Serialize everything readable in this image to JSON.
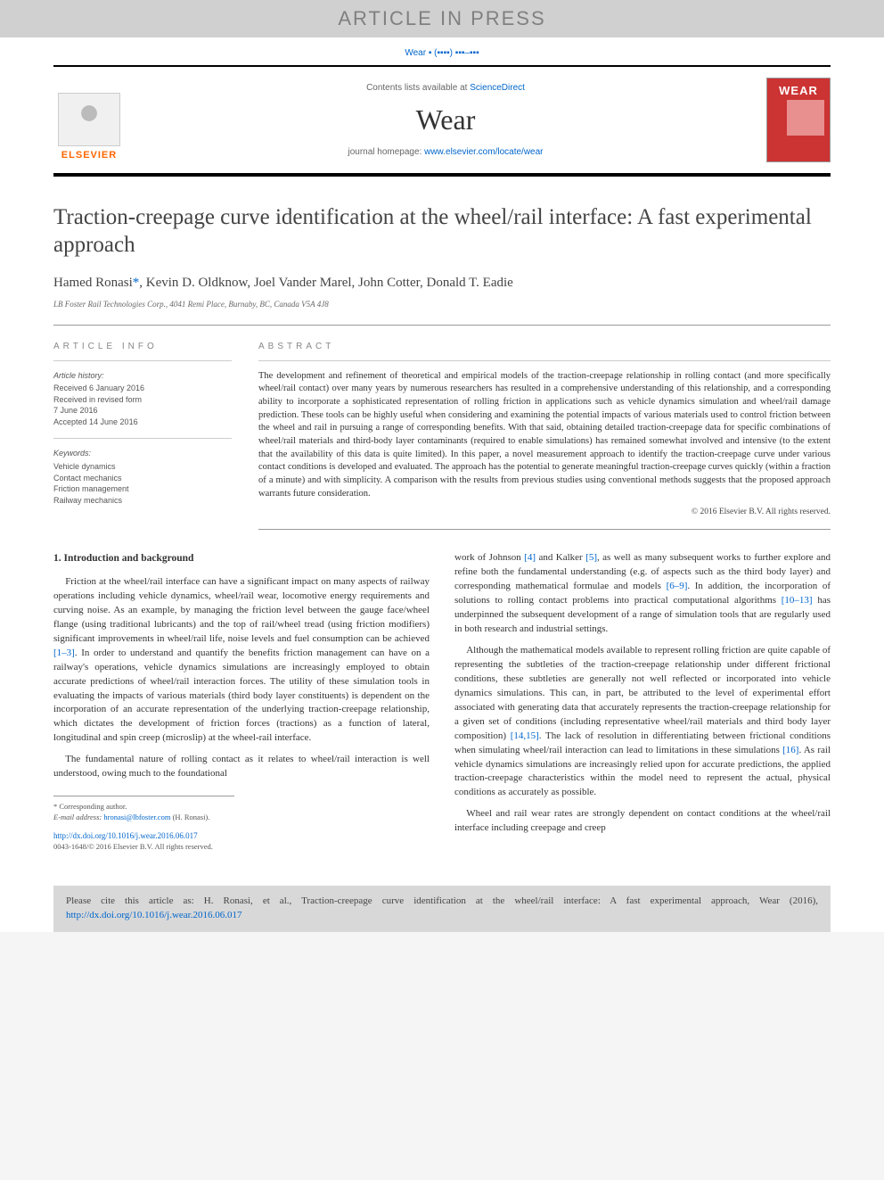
{
  "banner": {
    "text": "ARTICLE IN PRESS"
  },
  "citation_top": "Wear ▪ (▪▪▪▪) ▪▪▪–▪▪▪",
  "header": {
    "contents_prefix": "Contents lists available at ",
    "contents_link": "ScienceDirect",
    "journal": "Wear",
    "homepage_prefix": "journal homepage: ",
    "homepage_link": "www.elsevier.com/locate/wear",
    "publisher": "ELSEVIER",
    "cover_title": "WEAR"
  },
  "article": {
    "title": "Traction-creepage curve identification at the wheel/rail interface: A fast experimental approach",
    "authors_prefix": "Hamed Ronasi",
    "corr_marker": "*",
    "authors_rest": ", Kevin D. Oldknow, Joel Vander Marel, John Cotter, Donald T. Eadie",
    "affiliation": "LB Foster Rail Technologies Corp., 4041 Remi Place, Burnaby, BC, Canada V5A 4J8"
  },
  "info": {
    "heading": "ARTICLE INFO",
    "history_label": "Article history:",
    "received": "Received 6 January 2016",
    "revised1": "Received in revised form",
    "revised2": "7 June 2016",
    "accepted": "Accepted 14 June 2016",
    "keywords_label": "Keywords:",
    "kw1": "Vehicle dynamics",
    "kw2": "Contact mechanics",
    "kw3": "Friction management",
    "kw4": "Railway mechanics"
  },
  "abstract": {
    "heading": "ABSTRACT",
    "text": "The development and refinement of theoretical and empirical models of the traction-creepage relationship in rolling contact (and more specifically wheel/rail contact) over many years by numerous researchers has resulted in a comprehensive understanding of this relationship, and a corresponding ability to incorporate a sophisticated representation of rolling friction in applications such as vehicle dynamics simulation and wheel/rail damage prediction. These tools can be highly useful when considering and examining the potential impacts of various materials used to control friction between the wheel and rail in pursuing a range of corresponding benefits. With that said, obtaining detailed traction-creepage data for specific combinations of wheel/rail materials and third-body layer contaminants (required to enable simulations) has remained somewhat involved and intensive (to the extent that the availability of this data is quite limited). In this paper, a novel measurement approach to identify the traction-creepage curve under various contact conditions is developed and evaluated. The approach has the potential to generate meaningful traction-creepage curves quickly (within a fraction of a minute) and with simplicity. A comparison with the results from previous studies using conventional methods suggests that the proposed approach warrants future consideration.",
    "copyright": "© 2016 Elsevier B.V. All rights reserved."
  },
  "body": {
    "sec_heading": "1. Introduction and background",
    "col1_p1a": "Friction at the wheel/rail interface can have a significant impact on many aspects of railway operations including vehicle dynamics, wheel/rail wear, locomotive energy requirements and curving noise. As an example, by managing the friction level between the gauge face/wheel flange (using traditional lubricants) and the top of rail/wheel tread (using friction modifiers) significant improvements in wheel/rail life, noise levels and fuel consumption can be achieved ",
    "col1_ref1": "[1–3]",
    "col1_p1b": ". In order to understand and quantify the benefits friction management can have on a railway's operations, vehicle dynamics simulations are increasingly employed to obtain accurate predictions of wheel/rail interaction forces. The utility of these simulation tools in evaluating the impacts of various materials (third body layer constituents) is dependent on the incorporation of an accurate representation of the underlying traction-creepage relationship, which dictates the development of friction forces (tractions) as a function of lateral, longitudinal and spin creep (microslip) at the wheel-rail interface.",
    "col1_p2": "The fundamental nature of rolling contact as it relates to wheel/rail interaction is well understood, owing much to the foundational",
    "col2_p1a": "work of Johnson ",
    "col2_ref4": "[4]",
    "col2_p1b": " and Kalker ",
    "col2_ref5": "[5]",
    "col2_p1c": ", as well as many subsequent works to further explore and refine both the fundamental understanding (e.g. of aspects such as the third body layer) and corresponding mathematical formulae and models ",
    "col2_ref69": "[6–9]",
    "col2_p1d": ". In addition, the incorporation of solutions to rolling contact problems into practical computational algorithms ",
    "col2_ref1013": "[10–13]",
    "col2_p1e": " has underpinned the subsequent development of a range of simulation tools that are regularly used in both research and industrial settings.",
    "col2_p2a": "Although the mathematical models available to represent rolling friction are quite capable of representing the subtleties of the traction-creepage relationship under different frictional conditions, these subtleties are generally not well reflected or incorporated into vehicle dynamics simulations. This can, in part, be attributed to the level of experimental effort associated with generating data that accurately represents the traction-creepage relationship for a given set of conditions (including representative wheel/rail materials and third body layer composition) ",
    "col2_ref1415": "[14,15]",
    "col2_p2b": ". The lack of resolution in differentiating between frictional conditions when simulating wheel/rail interaction can lead to limitations in these simulations ",
    "col2_ref16": "[16]",
    "col2_p2c": ". As rail vehicle dynamics simulations are increasingly relied upon for accurate predictions, the applied traction-creepage characteristics within the model need to represent the actual, physical conditions as accurately as possible.",
    "col2_p3": "Wheel and rail wear rates are strongly dependent on contact conditions at the wheel/rail interface including creepage and creep"
  },
  "footnotes": {
    "corr": "* Corresponding author.",
    "email_label": "E-mail address: ",
    "email": "hronasi@lbfoster.com",
    "email_suffix": " (H. Ronasi).",
    "doi": "http://dx.doi.org/10.1016/j.wear.2016.06.017",
    "issn": "0043-1648/© 2016 Elsevier B.V. All rights reserved."
  },
  "cite_box": {
    "text_a": "Please cite this article as: H. Ronasi, et al., Traction-creepage curve identification at the wheel/rail interface: A fast experimental approach, Wear (2016), ",
    "link": "http://dx.doi.org/10.1016/j.wear.2016.06.017"
  },
  "colors": {
    "banner_bg": "#d0d0d0",
    "banner_fg": "#808080",
    "link": "#0066cc",
    "elsevier_orange": "#ff6600",
    "cover_red": "#cc3333",
    "cite_box_bg": "#d8d8d8"
  }
}
